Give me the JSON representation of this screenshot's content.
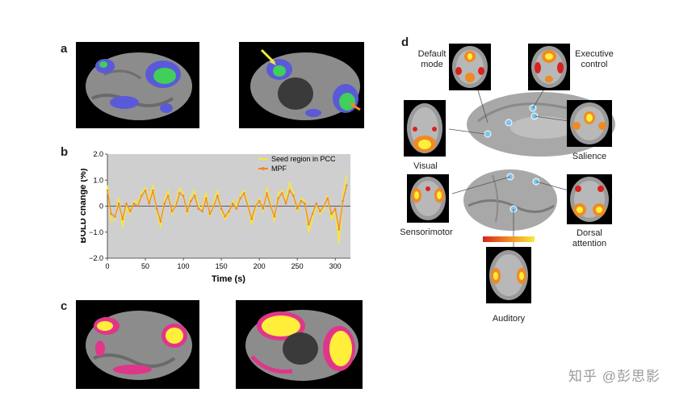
{
  "panels": {
    "a": "a",
    "b": "b",
    "c": "c",
    "d": "d"
  },
  "networks": {
    "default_mode": [
      "Default",
      "mode"
    ],
    "executive_control": [
      "Executive",
      "control"
    ],
    "visual": "Visual",
    "salience": "Salience",
    "sensorimotor": "Sensorimotor",
    "dorsal_attention": [
      "Dorsal",
      "attention"
    ],
    "auditory": "Auditory"
  },
  "watermark": "知乎 @彭思影",
  "colors": {
    "seed_series": "#f5e642",
    "mpf_series": "#f08a24",
    "plot_bg": "#cfcfcf",
    "network_blue": "#5a5ad8",
    "network_green": "#3fcf5a",
    "corr_yellow": "#ffee3a",
    "corr_pink": "#e0368a",
    "colorbar_low": "#d8231c",
    "colorbar_high": "#f7e93a"
  },
  "chart_data": {
    "type": "line",
    "title": "",
    "xlabel": "Time (s)",
    "ylabel": "BOLD change (%)",
    "xlim": [
      0,
      320
    ],
    "ylim": [
      -2.0,
      2.0
    ],
    "xticks": [
      0,
      50,
      100,
      150,
      200,
      250,
      300
    ],
    "yticks": [
      2.0,
      1.0,
      0,
      -1.0,
      -2.0
    ],
    "ytick_labels": [
      "2.0",
      "1.0",
      "0",
      "−1.0",
      "−2.0"
    ],
    "grid": false,
    "legend": "top-right",
    "x": [
      0,
      5,
      10,
      15,
      20,
      25,
      30,
      35,
      40,
      45,
      50,
      55,
      60,
      65,
      70,
      75,
      80,
      85,
      90,
      95,
      100,
      105,
      110,
      115,
      120,
      125,
      130,
      135,
      140,
      145,
      150,
      155,
      160,
      165,
      170,
      175,
      180,
      185,
      190,
      195,
      200,
      205,
      210,
      215,
      220,
      225,
      230,
      235,
      240,
      245,
      250,
      255,
      260,
      265,
      270,
      275,
      280,
      285,
      290,
      295,
      300,
      305,
      310,
      315
    ],
    "series": [
      {
        "name": "Seed region in PCC",
        "values": [
          0.8,
          -0.6,
          -0.5,
          0.3,
          -0.8,
          0.0,
          -0.3,
          0.2,
          0.1,
          0.5,
          0.7,
          0.2,
          0.8,
          -0.2,
          -0.8,
          0.2,
          0.6,
          -0.3,
          0.1,
          0.7,
          0.5,
          -0.3,
          0.4,
          0.6,
          0.0,
          -0.1,
          0.5,
          -0.4,
          0.1,
          0.6,
          -0.2,
          -0.5,
          -0.3,
          0.2,
          0.0,
          0.4,
          0.6,
          0.1,
          -0.7,
          -0.1,
          0.3,
          -0.2,
          0.7,
          0.1,
          -0.6,
          0.5,
          0.6,
          0.2,
          0.9,
          0.5,
          -0.2,
          0.3,
          0.2,
          -1.0,
          -0.5,
          0.1,
          -0.3,
          -0.1,
          0.4,
          -0.5,
          -0.2,
          -1.4,
          0.3,
          1.2
        ]
      },
      {
        "name": "MPF",
        "values": [
          0.6,
          -0.3,
          -0.4,
          0.1,
          -0.5,
          0.1,
          -0.2,
          0.1,
          0.0,
          0.4,
          0.6,
          0.1,
          0.6,
          -0.1,
          -0.6,
          0.1,
          0.4,
          -0.2,
          0.0,
          0.5,
          0.4,
          -0.2,
          0.2,
          0.4,
          -0.1,
          -0.2,
          0.3,
          -0.3,
          0.0,
          0.4,
          -0.1,
          -0.4,
          -0.2,
          0.1,
          -0.1,
          0.3,
          0.5,
          0.0,
          -0.5,
          0.0,
          0.2,
          -0.1,
          0.5,
          0.0,
          -0.4,
          0.3,
          0.5,
          0.1,
          0.6,
          0.4,
          -0.1,
          0.2,
          0.1,
          -0.7,
          -0.3,
          0.1,
          -0.2,
          0.0,
          0.3,
          -0.3,
          -0.1,
          -0.9,
          0.2,
          0.8
        ]
      }
    ]
  }
}
